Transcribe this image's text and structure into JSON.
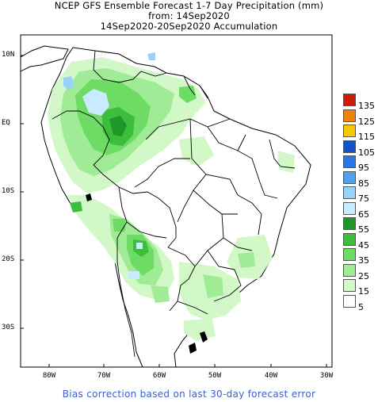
{
  "title": {
    "line1": "NCEP GFS Ensemble Forecast 1-7 Day Precipitation (mm)",
    "line2": "from: 14Sep2020",
    "line3": "14Sep2020-20Sep2020 Accumulation"
  },
  "axes": {
    "lat_labels": [
      "10N",
      "EQ",
      "10S",
      "20S",
      "30S"
    ],
    "lon_labels": [
      "80W",
      "70W",
      "60W",
      "50W",
      "40W",
      "30W"
    ]
  },
  "legend": {
    "items": [
      {
        "label": "135",
        "color": "#c81e0a"
      },
      {
        "label": "125",
        "color": "#f0820a"
      },
      {
        "label": "115",
        "color": "#f5c800"
      },
      {
        "label": "105",
        "color": "#1450c8"
      },
      {
        "label": "95",
        "color": "#2878e6"
      },
      {
        "label": "85",
        "color": "#50a0f0"
      },
      {
        "label": "75",
        "color": "#96d2fa"
      },
      {
        "label": "65",
        "color": "#c8ebff"
      },
      {
        "label": "55",
        "color": "#1e9628"
      },
      {
        "label": "45",
        "color": "#3cbe3c"
      },
      {
        "label": "35",
        "color": "#6edc64"
      },
      {
        "label": "25",
        "color": "#a0ec96"
      },
      {
        "label": "15",
        "color": "#d2f8c8"
      },
      {
        "label": "5",
        "color": "#ffffff"
      }
    ]
  },
  "footer": "Bias correction based on last 30-day forecast error"
}
